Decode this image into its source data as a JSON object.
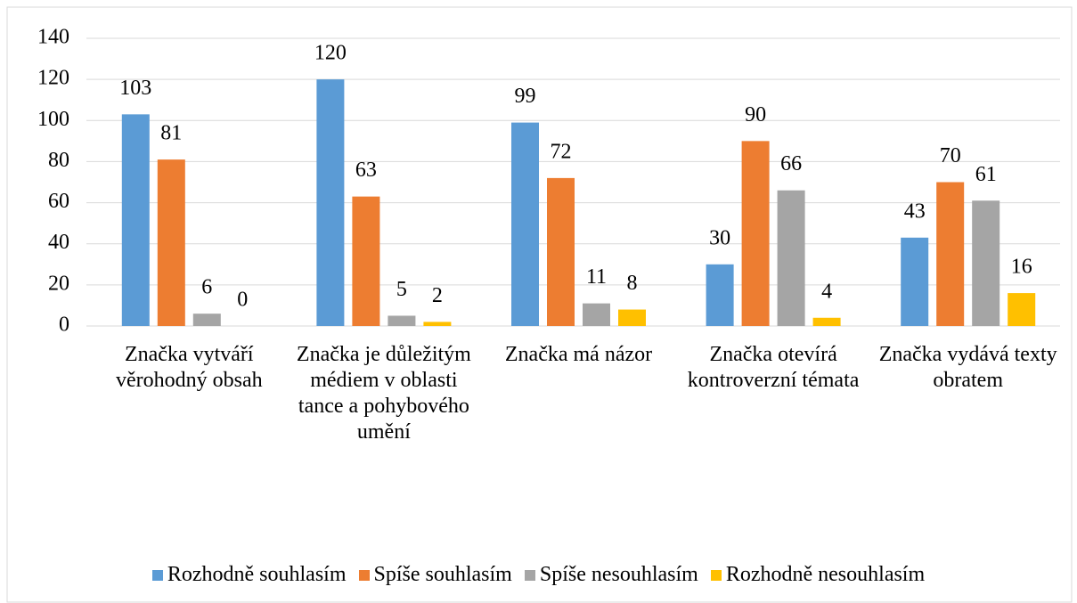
{
  "chart_data": {
    "type": "bar",
    "categories": [
      "Značka vytváří věrohodný obsah",
      "Značka je důležitým médiem v oblasti tance a pohybového umění",
      "Značka má názor",
      "Značka otevírá kontroverzní témata",
      "Značka vydává texty obratem"
    ],
    "series": [
      {
        "name": "Rozhodně souhlasím",
        "color": "#5b9bd5",
        "values": [
          103,
          120,
          99,
          30,
          43
        ]
      },
      {
        "name": "Spíše souhlasím",
        "color": "#ed7d31",
        "values": [
          81,
          63,
          72,
          90,
          70
        ]
      },
      {
        "name": "Spíše nesouhlasím",
        "color": "#a5a5a5",
        "values": [
          6,
          5,
          11,
          66,
          61
        ]
      },
      {
        "name": "Rozhodně nesouhlasím",
        "color": "#ffc000",
        "values": [
          0,
          2,
          8,
          4,
          16
        ]
      }
    ],
    "ylim": [
      0,
      140
    ],
    "yticks": [
      0,
      20,
      40,
      60,
      80,
      100,
      120,
      140
    ],
    "grid": true,
    "legend": "bottom"
  }
}
